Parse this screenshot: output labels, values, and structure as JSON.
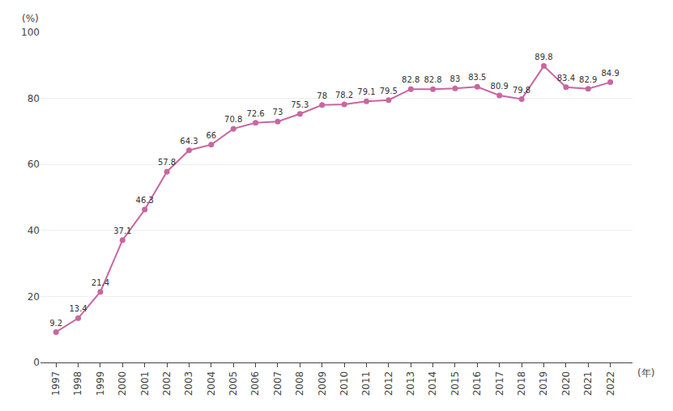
{
  "chart_data": {
    "type": "line",
    "x": [
      1997,
      1998,
      1999,
      2000,
      2001,
      2002,
      2003,
      2004,
      2005,
      2006,
      2007,
      2008,
      2009,
      2010,
      2011,
      2012,
      2013,
      2014,
      2015,
      2016,
      2017,
      2018,
      2019,
      2020,
      2021,
      2022
    ],
    "values": [
      9.2,
      13.4,
      21.4,
      37.1,
      46.3,
      57.8,
      64.3,
      66.0,
      70.8,
      72.6,
      73.0,
      75.3,
      78.0,
      78.2,
      79.1,
      79.5,
      82.8,
      82.8,
      83.0,
      83.5,
      80.9,
      79.8,
      89.8,
      83.4,
      82.9,
      84.9
    ],
    "color": "#c966a0",
    "marker": "circle",
    "xlabel": "(年)",
    "ylabel": "(%)",
    "xlim": [
      1996.3,
      2023.0
    ],
    "xticks": [
      1997,
      1998,
      1999,
      2000,
      2001,
      2002,
      2003,
      2004,
      2005,
      2006,
      2007,
      2008,
      2009,
      2010,
      2011,
      2012,
      2013,
      2014,
      2015,
      2016,
      2017,
      2018,
      2019,
      2020,
      2021,
      2022
    ],
    "ylim": [
      0,
      100
    ],
    "yticks": [
      0,
      20,
      40,
      60,
      80,
      100
    ],
    "grid": true,
    "data_labels": true
  }
}
